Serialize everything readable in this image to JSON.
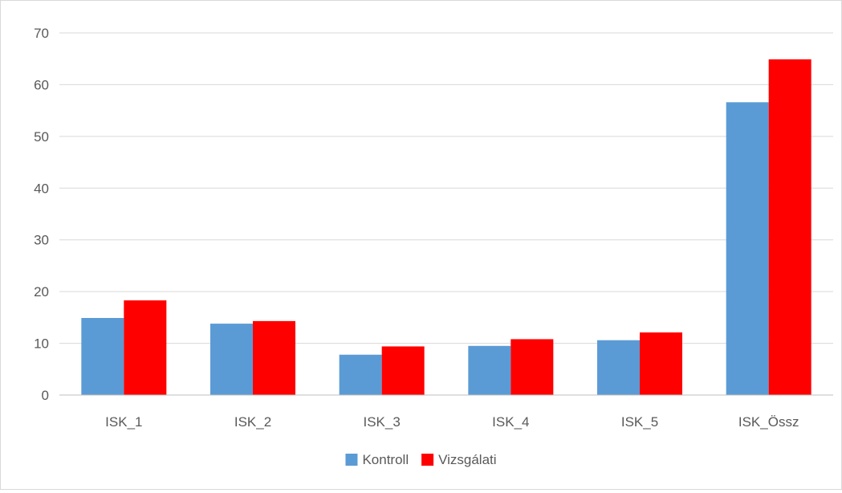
{
  "chart_data": {
    "type": "bar",
    "categories": [
      "ISK_1",
      "ISK_2",
      "ISK_3",
      "ISK_4",
      "ISK_5",
      "ISK_Össz"
    ],
    "series": [
      {
        "name": "Kontroll",
        "values": [
          14.9,
          13.8,
          7.8,
          9.5,
          10.6,
          56.6
        ],
        "color": "#5b9bd5"
      },
      {
        "name": "Vizsgálati",
        "values": [
          18.3,
          14.3,
          9.4,
          10.8,
          12.1,
          64.9
        ],
        "color": "#ff0000"
      }
    ],
    "yticks": [
      0,
      10,
      20,
      30,
      40,
      50,
      60,
      70
    ],
    "ylim": [
      0,
      70
    ],
    "grid": true,
    "legend_position": "bottom"
  }
}
